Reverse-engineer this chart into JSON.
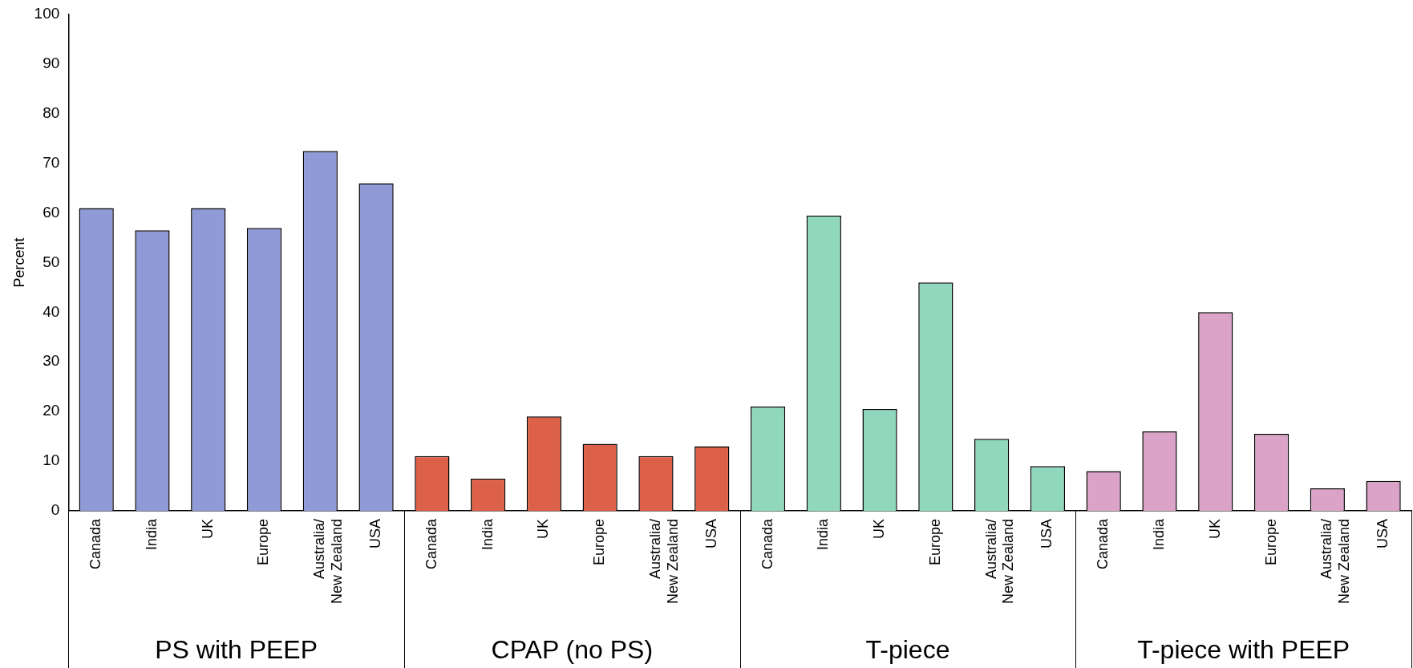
{
  "chart_data": {
    "type": "bar",
    "ylabel": "Percent",
    "categories": [
      "Canada",
      "India",
      "UK",
      "Europe",
      "Australia/\nNew Zealand",
      "USA",
      "Canada",
      "India",
      "UK",
      "Europe",
      "Australia/\nNew Zealand",
      "USA",
      "Canada",
      "India",
      "UK",
      "Europe",
      "Australia/\nNew Zealand",
      "USA",
      "Canada",
      "India",
      "UK",
      "Europe",
      "Australia/\nNew Zealand",
      "USA"
    ],
    "series": [
      {
        "color": "#8f9ad6",
        "values": [
          61,
          56.5,
          61,
          57,
          72.5,
          66,
          null,
          null,
          null,
          null,
          null,
          null,
          null,
          null,
          null,
          null,
          null,
          null,
          null,
          null,
          null,
          null,
          null,
          null
        ]
      },
      {
        "color": "#dd6048",
        "values": [
          null,
          null,
          null,
          null,
          null,
          null,
          11,
          6.5,
          19,
          13.5,
          11,
          13,
          null,
          null,
          null,
          null,
          null,
          null,
          null,
          null,
          null,
          null,
          null,
          null
        ]
      },
      {
        "color": "#8fd8bd",
        "values": [
          null,
          null,
          null,
          null,
          null,
          null,
          null,
          null,
          null,
          null,
          null,
          null,
          21,
          59.5,
          20.5,
          46,
          14.5,
          9,
          null,
          null,
          null,
          null,
          null,
          null
        ]
      },
      {
        "color": "#dba3c8",
        "values": [
          null,
          null,
          null,
          null,
          null,
          null,
          null,
          null,
          null,
          null,
          null,
          null,
          null,
          null,
          null,
          null,
          null,
          null,
          8,
          16,
          40,
          15.5,
          4.5,
          6
        ]
      }
    ],
    "ylim": [
      0,
      100
    ],
    "yticks": [
      0,
      10,
      20,
      30,
      40,
      50,
      60,
      70,
      80,
      90,
      100
    ],
    "grid": false,
    "legend": false,
    "annotations": [
      "PS with PEEP",
      "CPAP (no PS)",
      "T-piece",
      "T-piece with PEEP"
    ]
  }
}
